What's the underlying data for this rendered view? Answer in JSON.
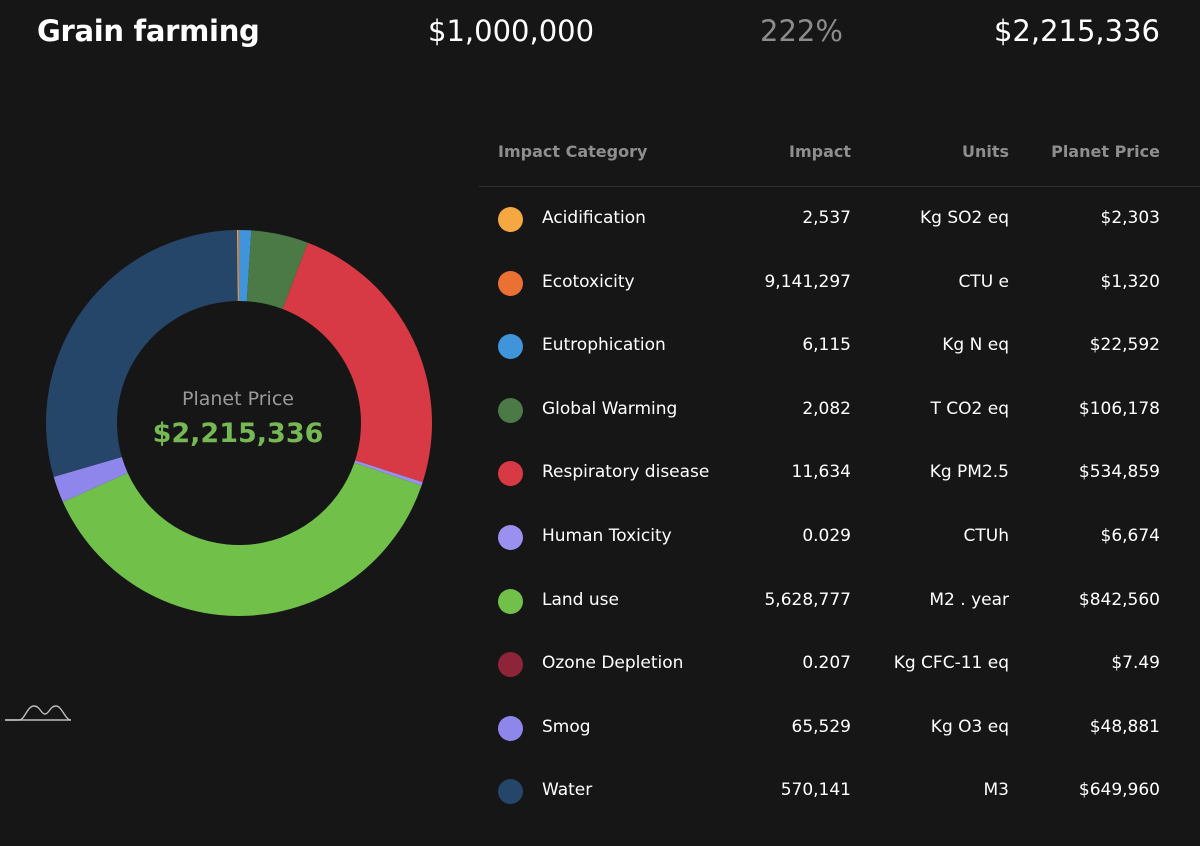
{
  "header": {
    "title": "Grain farming",
    "investment": "$1,000,000",
    "ratio": "222%",
    "planet_price": "$2,215,336"
  },
  "donut": {
    "center_label": "Planet Price",
    "center_value": "$2,215,336"
  },
  "table": {
    "headers": {
      "category": "Impact Category",
      "impact": "Impact",
      "units": "Units",
      "price": "Planet Price"
    },
    "rows": [
      {
        "category": "Acidification",
        "impact": "2,537",
        "units": "Kg SO2 eq",
        "price": "$2,303",
        "color": "#f5a742"
      },
      {
        "category": "Ecotoxicity",
        "impact": "9,141,297",
        "units": "CTU e",
        "price": "$1,320",
        "color": "#ea7034"
      },
      {
        "category": "Eutrophication",
        "impact": "6,115",
        "units": "Kg N eq",
        "price": "$22,592",
        "color": "#3f94da"
      },
      {
        "category": "Global Warming",
        "impact": "2,082",
        "units": "T CO2 eq",
        "price": "$106,178",
        "color": "#4b7a47"
      },
      {
        "category": "Respiratory disease",
        "impact": "11,634",
        "units": "Kg PM2.5",
        "price": "$534,859",
        "color": "#d73a45"
      },
      {
        "category": "Human Toxicity",
        "impact": "0.029",
        "units": "CTUh",
        "price": "$6,674",
        "color": "#9b8ff0"
      },
      {
        "category": "Land use",
        "impact": "5,628,777",
        "units": "M2 . year",
        "price": "$842,560",
        "color": "#70c04a"
      },
      {
        "category": "Ozone Depletion",
        "impact": "0.207",
        "units": "Kg CFC-11 eq",
        "price": "$7.49",
        "color": "#8e2438"
      },
      {
        "category": "Smog",
        "impact": "65,529",
        "units": "Kg O3 eq",
        "price": "$48,881",
        "color": "#8f86eb"
      },
      {
        "category": "Water",
        "impact": "570,141",
        "units": "M3",
        "price": "$649,960",
        "color": "#254569"
      }
    ]
  },
  "chart_data": {
    "type": "pie",
    "donut": true,
    "start_category": "Eutrophication",
    "categories": [
      "Eutrophication",
      "Global Warming",
      "Respiratory disease",
      "Human Toxicity",
      "Land use",
      "Ozone Depletion",
      "Smog",
      "Water",
      "Acidification",
      "Ecotoxicity"
    ],
    "values": [
      22592,
      106178,
      534859,
      6674,
      842560,
      7.49,
      48881,
      649960,
      2303,
      1320
    ],
    "colors": [
      "#3f94da",
      "#4b7a47",
      "#d73a45",
      "#9b8ff0",
      "#70c04a",
      "#8e2438",
      "#8f86eb",
      "#254569",
      "#f5a742",
      "#ea7034"
    ]
  }
}
